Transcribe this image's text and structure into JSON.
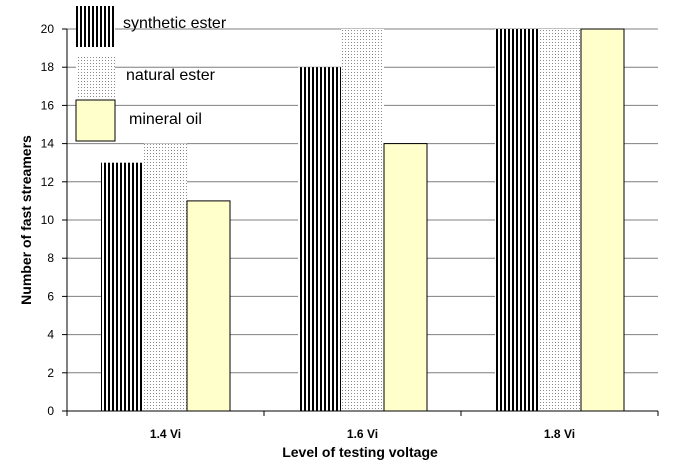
{
  "chart_data": {
    "type": "bar",
    "categories": [
      "1.4 Vi",
      "1.6 Vi",
      "1.8 Vi"
    ],
    "series": [
      {
        "name": "synthetic ester",
        "values": [
          13,
          18,
          20
        ],
        "pattern": "vertical-stripes",
        "color": "#000000"
      },
      {
        "name": "natural ester",
        "values": [
          14,
          20,
          20
        ],
        "pattern": "dots",
        "color": "#9a9a9a"
      },
      {
        "name": "mineral oil",
        "values": [
          11,
          14,
          20
        ],
        "pattern": "solid",
        "color": "#ffffcc"
      }
    ],
    "xlabel": "Level of testing voltage",
    "ylabel": "Number of fast streamers",
    "ylim": [
      0,
      20
    ],
    "yticks": [
      0,
      2,
      4,
      6,
      8,
      10,
      12,
      14,
      16,
      18,
      20
    ],
    "grid": true,
    "legend_position": "top-left"
  }
}
